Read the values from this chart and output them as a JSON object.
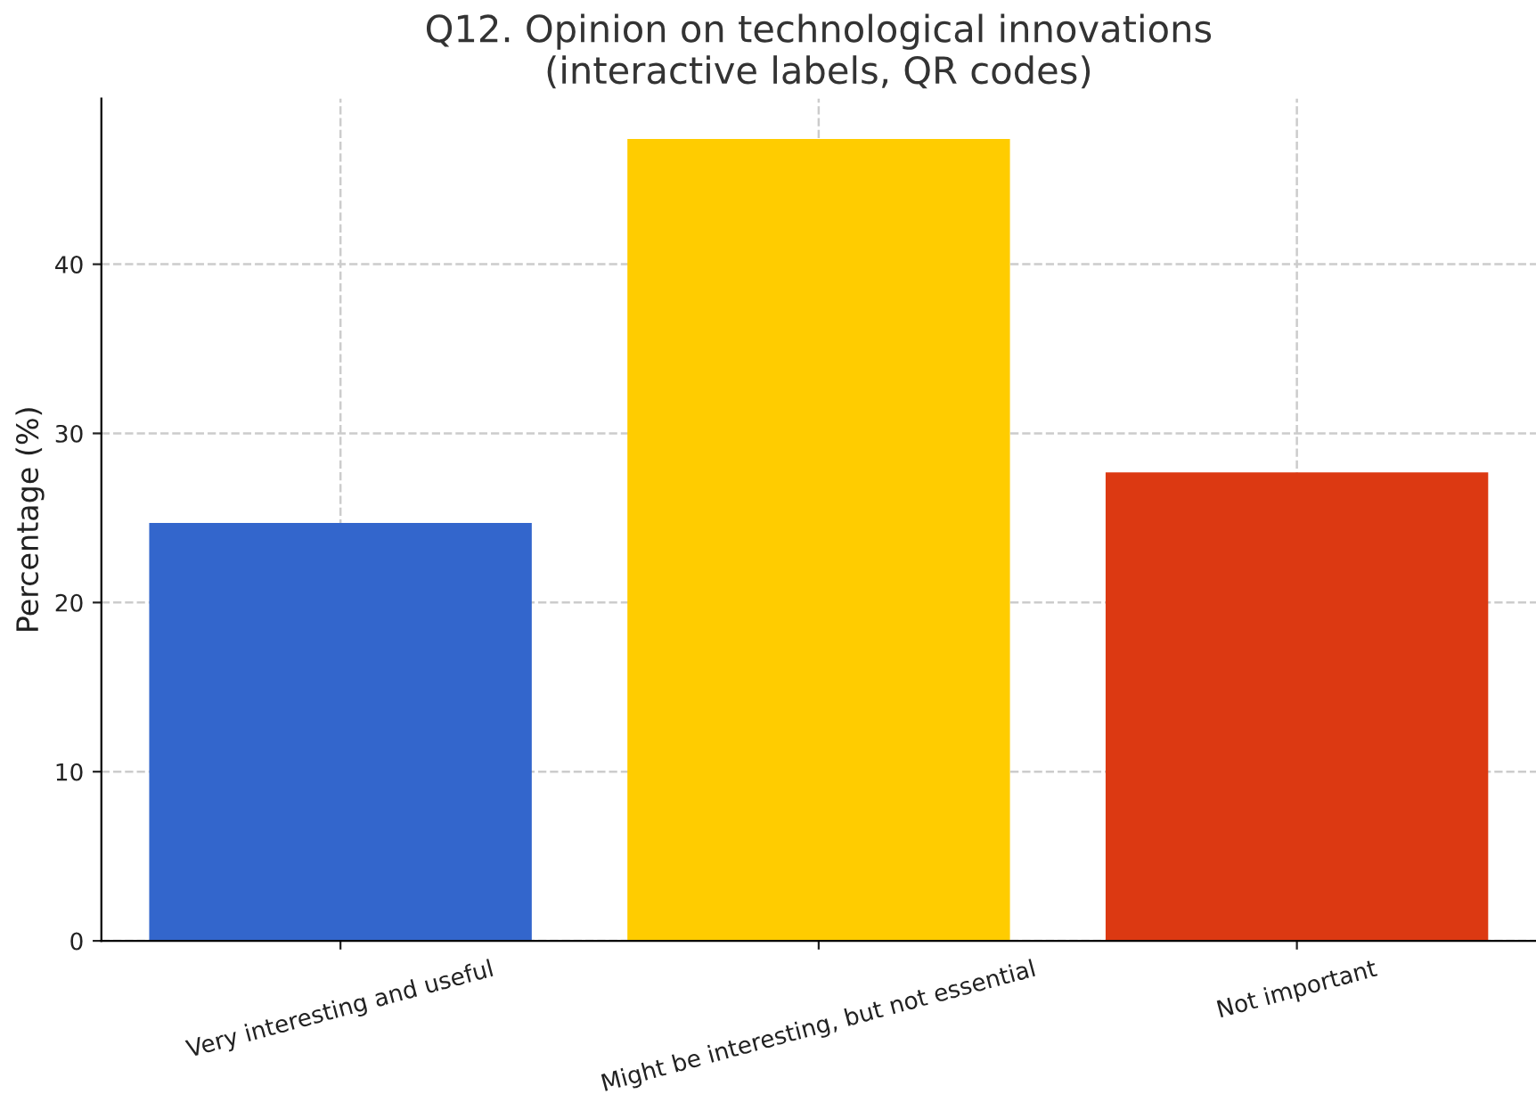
{
  "chart_data": {
    "type": "bar",
    "title": "Q12. Opinion on technological innovations\n(interactive labels, QR codes)",
    "ylabel": "Percentage (%)",
    "categories": [
      "Very interesting and useful",
      "Might be interesting, but not essential",
      "Not important"
    ],
    "values": [
      24.7,
      47.4,
      27.7
    ],
    "colors": [
      "#3366cc",
      "#ffcc00",
      "#dc3912"
    ],
    "ylim": [
      0,
      49.8
    ],
    "yticks": [
      0,
      10,
      20,
      30,
      40
    ],
    "grid": true,
    "line_style": "dashed"
  }
}
